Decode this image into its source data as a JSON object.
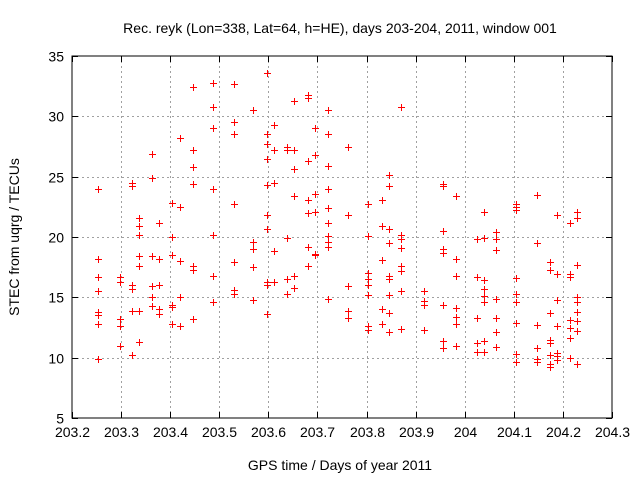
{
  "chart_data": {
    "type": "scatter",
    "title": "Rec. reyk (Lon=338, Lat=64, h=HE), days 203-204, 2011, window 001",
    "xlabel": "GPS time / Days of year 2011",
    "ylabel": "STEC from uqrg / TECUs",
    "xlim": [
      203.2,
      204.3
    ],
    "ylim": [
      5,
      35
    ],
    "xticks": [
      203.2,
      203.3,
      203.4,
      203.5,
      203.6,
      203.7,
      203.8,
      203.9,
      204.0,
      204.1,
      204.2,
      204.3
    ],
    "xtick_labels": [
      "203.2",
      "203.3",
      "203.4",
      "203.5",
      "203.6",
      "203.7",
      "203.8",
      "203.9",
      "204",
      "204.1",
      "204.2",
      "204.3"
    ],
    "yticks": [
      5,
      10,
      15,
      20,
      25,
      30,
      35
    ],
    "ytick_labels": [
      "5",
      "10",
      "15",
      "20",
      "25",
      "30",
      "35"
    ],
    "grid": true,
    "marker": "plus",
    "color": "#ff0000",
    "columns": [
      {
        "x": 203.253,
        "y": [
          24.0,
          18.2,
          16.7,
          15.5,
          13.8,
          13.5,
          12.8,
          9.9
        ]
      },
      {
        "x": 203.298,
        "y": [
          16.7,
          16.3,
          13.2,
          12.6,
          11.0
        ]
      },
      {
        "x": 203.322,
        "y": [
          24.5,
          24.2,
          16.0,
          15.7,
          13.9,
          10.2
        ]
      },
      {
        "x": 203.336,
        "y": [
          21.6,
          20.9,
          20.2,
          18.4,
          17.6,
          13.9,
          11.3
        ]
      },
      {
        "x": 203.363,
        "y": [
          26.9,
          24.9,
          18.4,
          15.9,
          15.0,
          14.3
        ]
      },
      {
        "x": 203.377,
        "y": [
          21.2,
          18.2,
          16.0,
          14.0,
          13.6
        ]
      },
      {
        "x": 203.404,
        "y": [
          22.8,
          20.0,
          18.5,
          14.4,
          14.2,
          12.8
        ]
      },
      {
        "x": 203.42,
        "y": [
          28.2,
          22.5,
          18.0,
          15.0,
          12.6
        ]
      },
      {
        "x": 203.446,
        "y": [
          32.4,
          27.2,
          25.8,
          24.4,
          17.6,
          17.3,
          13.2
        ]
      },
      {
        "x": 203.487,
        "y": [
          32.8,
          30.8,
          29.0,
          24.0,
          20.2,
          16.8,
          14.6
        ]
      },
      {
        "x": 203.53,
        "y": [
          32.7,
          29.5,
          28.5,
          22.7,
          17.9,
          15.6,
          15.3
        ]
      },
      {
        "x": 203.569,
        "y": [
          30.5,
          19.6,
          19.0,
          17.5,
          14.8
        ]
      },
      {
        "x": 203.597,
        "y": [
          33.6,
          28.5,
          27.7,
          26.5,
          24.3,
          21.8,
          20.7,
          16.3,
          16.0,
          13.6
        ]
      },
      {
        "x": 203.611,
        "y": [
          29.3,
          27.2,
          24.5,
          18.8,
          16.3
        ]
      },
      {
        "x": 203.638,
        "y": [
          27.5,
          27.2,
          19.9,
          16.5,
          15.3
        ]
      },
      {
        "x": 203.652,
        "y": [
          31.3,
          27.2,
          25.6,
          23.4,
          16.8,
          15.8
        ]
      },
      {
        "x": 203.681,
        "y": [
          31.8,
          31.5,
          26.3,
          23.1,
          22.0,
          19.2,
          17.6
        ]
      },
      {
        "x": 203.695,
        "y": [
          29.0,
          26.8,
          23.6,
          22.1,
          18.6,
          18.5
        ]
      },
      {
        "x": 203.721,
        "y": [
          30.5,
          28.5,
          25.9,
          24.0,
          22.4,
          21.2,
          20.1,
          19.6,
          19.2,
          14.9
        ]
      },
      {
        "x": 203.762,
        "y": [
          27.5,
          21.8,
          15.9,
          13.9,
          13.3
        ]
      },
      {
        "x": 203.803,
        "y": [
          22.7,
          20.1,
          17.0,
          16.5,
          16.0,
          15.2,
          12.6,
          12.3
        ]
      },
      {
        "x": 203.831,
        "y": [
          23.1,
          20.9,
          18.1,
          14.0,
          12.8
        ]
      },
      {
        "x": 203.846,
        "y": [
          25.1,
          24.2,
          20.7,
          19.5,
          16.8,
          16.5,
          15.2,
          13.7,
          12.1
        ]
      },
      {
        "x": 203.87,
        "y": [
          30.8,
          20.2,
          19.8,
          19.1,
          17.6,
          17.2,
          15.5,
          12.4
        ]
      },
      {
        "x": 203.917,
        "y": [
          15.5,
          14.7,
          14.4,
          12.3
        ]
      },
      {
        "x": 203.956,
        "y": [
          24.4,
          24.2,
          20.5,
          19.0,
          18.7,
          14.4,
          11.4,
          10.8
        ]
      },
      {
        "x": 203.982,
        "y": [
          23.4,
          18.2,
          16.8,
          14.1,
          13.4,
          12.8,
          11.0
        ]
      },
      {
        "x": 204.025,
        "y": [
          19.8,
          16.7,
          13.3,
          11.2,
          10.5
        ]
      },
      {
        "x": 204.039,
        "y": [
          22.1,
          19.9,
          16.4,
          15.7,
          15.1,
          14.6,
          11.4,
          10.5
        ]
      },
      {
        "x": 204.064,
        "y": [
          20.4,
          19.8,
          18.9,
          14.9,
          13.3,
          12.1,
          10.9
        ]
      },
      {
        "x": 204.104,
        "y": [
          22.7,
          22.5,
          22.2,
          16.6,
          15.3,
          14.6,
          12.9,
          10.3,
          9.6
        ]
      },
      {
        "x": 204.147,
        "y": [
          23.5,
          19.5,
          12.7,
          10.8,
          9.9,
          9.6
        ]
      },
      {
        "x": 204.173,
        "y": [
          17.9,
          17.3,
          13.7,
          11.5,
          11.2,
          10.2,
          9.5,
          9.2
        ]
      },
      {
        "x": 204.188,
        "y": [
          21.8,
          16.9,
          14.8,
          12.6,
          10.4,
          10.1,
          9.8
        ]
      },
      {
        "x": 204.214,
        "y": [
          21.2,
          16.9,
          16.7,
          13.1,
          12.5,
          11.6,
          10.0
        ]
      },
      {
        "x": 204.229,
        "y": [
          22.1,
          21.6,
          17.7,
          15.0,
          14.6,
          13.8,
          13.0,
          12.2,
          9.5
        ]
      }
    ]
  }
}
